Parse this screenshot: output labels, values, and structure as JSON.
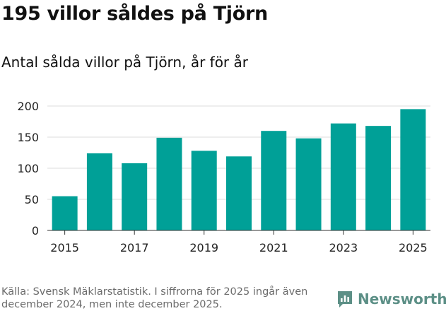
{
  "header": {
    "title": "195 villor såldes på Tjörn",
    "subtitle": "Antal sålda villor på Tjörn, år för år"
  },
  "chart_data": {
    "type": "bar",
    "title": "195 villor såldes på Tjörn",
    "subtitle": "Antal sålda villor på Tjörn, år för år",
    "categories": [
      "2015",
      "2016",
      "2017",
      "2018",
      "2019",
      "2020",
      "2021",
      "2022",
      "2023",
      "2024",
      "2025"
    ],
    "values": [
      55,
      124,
      108,
      149,
      128,
      119,
      160,
      148,
      172,
      168,
      195
    ],
    "x_tick_labels": [
      "2015",
      "2017",
      "2019",
      "2021",
      "2023",
      "2025"
    ],
    "y_ticks": [
      0,
      50,
      100,
      150,
      200
    ],
    "ylim": [
      0,
      200
    ],
    "xlabel": "",
    "ylabel": "",
    "grid": true,
    "bar_color": "#00a097"
  },
  "footer": {
    "source": "Källa: Svensk Mäklarstatistik. I siffrorna för 2025 ingår även december 2024, men inte december 2025.",
    "brand": "Newsworthy",
    "brand_icon": "newsworthy-logo-icon",
    "brand_color": "#5c8f86"
  }
}
